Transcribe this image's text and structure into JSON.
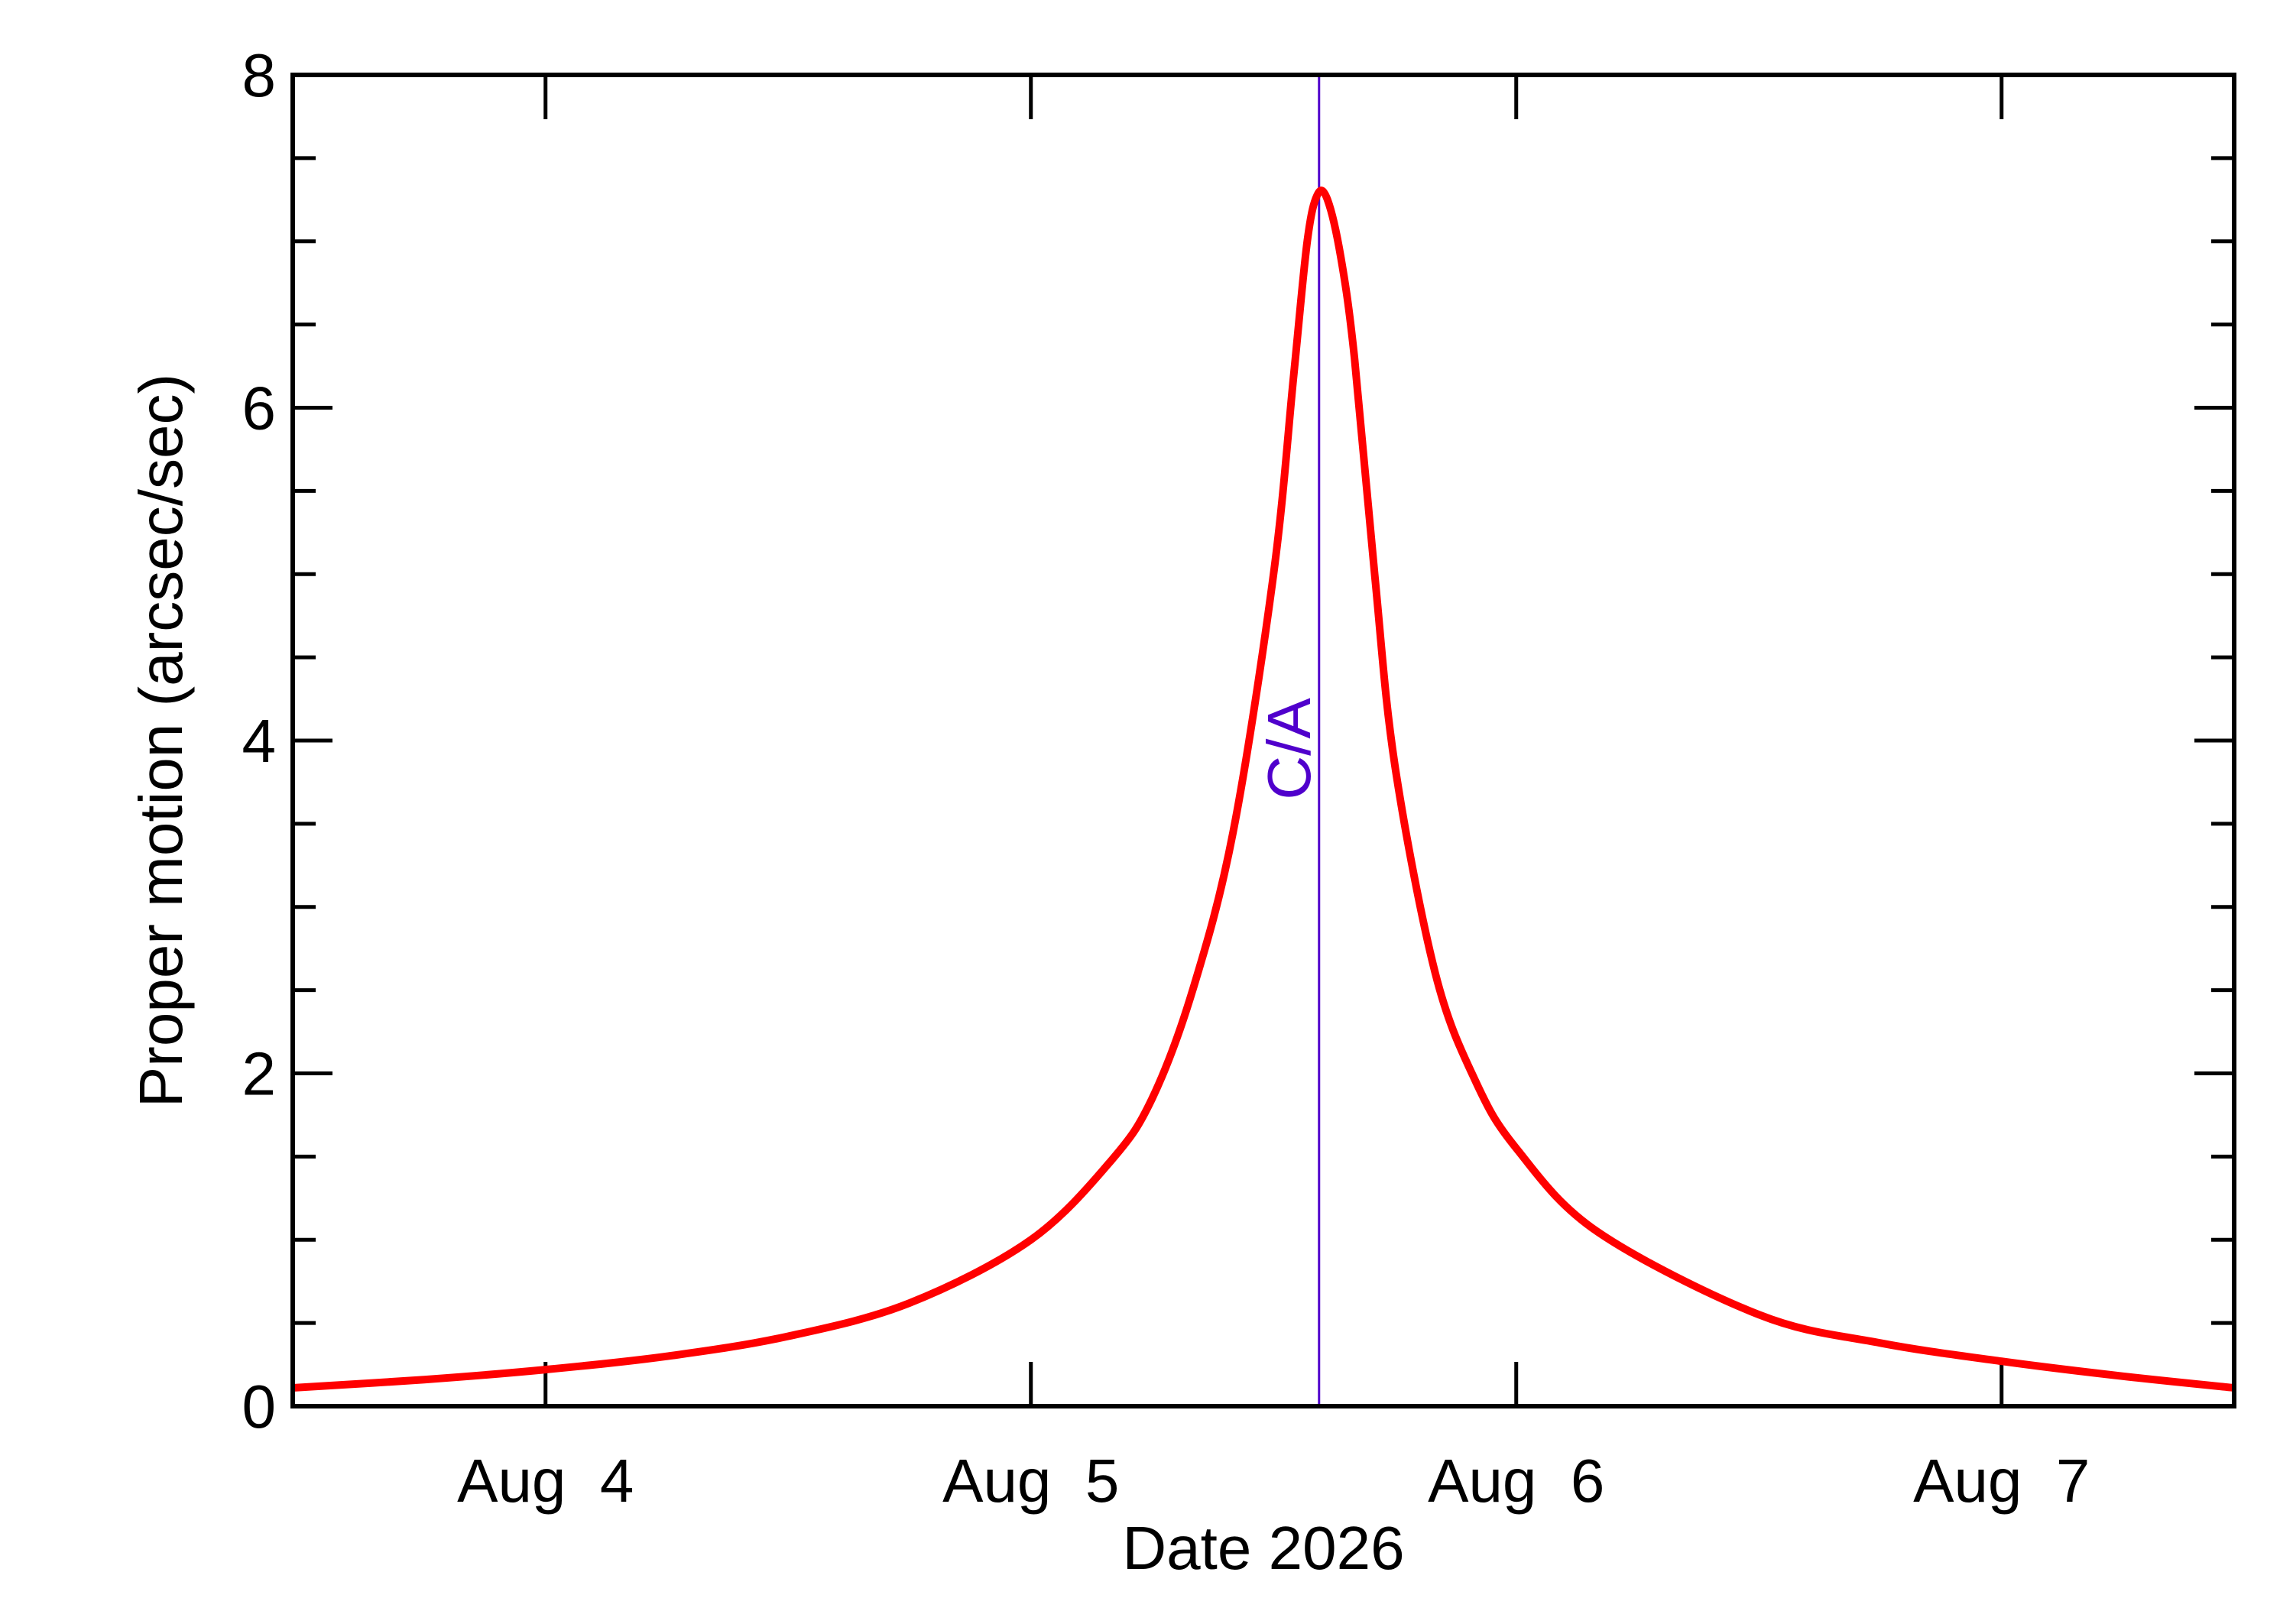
{
  "chart_data": {
    "type": "line",
    "title": "",
    "xlabel": "Date 2026",
    "ylabel": "Proper motion (arcsec/sec)",
    "x_axis": {
      "unit": "date",
      "range": [
        "2026-08-03 11:30",
        "2026-08-07 11:30"
      ],
      "ticks": [
        {
          "date": "2026-08-04 00:00",
          "label": "Aug  4"
        },
        {
          "date": "2026-08-05 00:00",
          "label": "Aug  5"
        },
        {
          "date": "2026-08-06 00:00",
          "label": "Aug  6"
        },
        {
          "date": "2026-08-07 00:00",
          "label": "Aug  7"
        }
      ]
    },
    "y_axis": {
      "range": [
        0,
        8
      ],
      "ticks": [
        "0",
        "2",
        "4",
        "6",
        "8"
      ],
      "minor_step": 0.5
    },
    "grid": false,
    "legend": "none",
    "series": [
      {
        "color": "#ff0000",
        "points": [
          [
            "2026-08-03 11:30",
            0.11
          ],
          [
            "2026-08-03 18:00",
            0.16
          ],
          [
            "2026-08-04 00:00",
            0.22
          ],
          [
            "2026-08-04 06:00",
            0.3
          ],
          [
            "2026-08-04 12:00",
            0.42
          ],
          [
            "2026-08-04 18:00",
            0.62
          ],
          [
            "2026-08-05 00:00",
            1.0
          ],
          [
            "2026-08-05 04:00",
            1.48
          ],
          [
            "2026-08-05 06:00",
            1.85
          ],
          [
            "2026-08-05 08:00",
            2.5
          ],
          [
            "2026-08-05 10:00",
            3.45
          ],
          [
            "2026-08-05 12:00",
            5.0
          ],
          [
            "2026-08-05 13:00",
            6.2
          ],
          [
            "2026-08-05 13:40",
            7.0
          ],
          [
            "2026-08-05 14:10",
            7.28
          ],
          [
            "2026-08-05 14:40",
            7.25
          ],
          [
            "2026-08-05 15:20",
            6.9
          ],
          [
            "2026-08-05 16:00",
            6.3
          ],
          [
            "2026-08-05 17:00",
            5.0
          ],
          [
            "2026-08-05 18:00",
            3.85
          ],
          [
            "2026-08-05 20:00",
            2.6
          ],
          [
            "2026-08-05 22:00",
            1.95
          ],
          [
            "2026-08-06 00:00",
            1.55
          ],
          [
            "2026-08-06 04:00",
            1.05
          ],
          [
            "2026-08-06 12:00",
            0.55
          ],
          [
            "2026-08-06 18:00",
            0.38
          ],
          [
            "2026-08-07 00:00",
            0.27
          ],
          [
            "2026-08-07 06:00",
            0.18
          ],
          [
            "2026-08-07 11:30",
            0.11
          ]
        ]
      }
    ],
    "annotations": [
      {
        "label": "C/A",
        "x": "2026-08-05 14:15",
        "color": "#5000cc"
      }
    ]
  }
}
